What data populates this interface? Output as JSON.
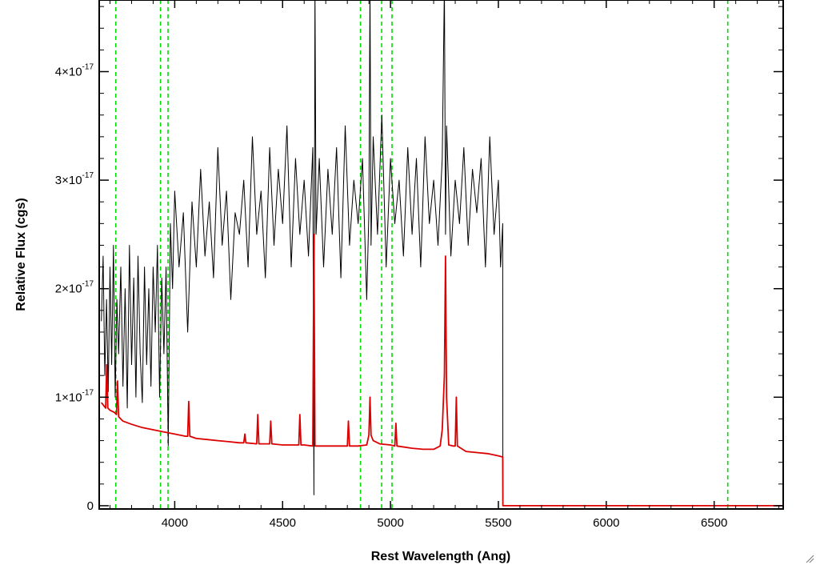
{
  "chart_data": {
    "type": "line",
    "title": "",
    "xlabel": "Rest Wavelength (Ang)",
    "ylabel": "Relative Flux (cgs)",
    "xlim": [
      3650,
      6820
    ],
    "ylim": [
      -3e-19,
      4.66e-17
    ],
    "x_ticks": [
      {
        "value": 4000,
        "label": "4000"
      },
      {
        "value": 4500,
        "label": "4500"
      },
      {
        "value": 5000,
        "label": "5000"
      },
      {
        "value": 5500,
        "label": "5500"
      },
      {
        "value": 6000,
        "label": "6000"
      },
      {
        "value": 6500,
        "label": "6500"
      }
    ],
    "y_ticks": [
      {
        "value": 0,
        "mantissa": "0",
        "exponent": ""
      },
      {
        "value": 1e-17,
        "mantissa": "1×10",
        "exponent": "-17"
      },
      {
        "value": 2e-17,
        "mantissa": "2×10",
        "exponent": "-17"
      },
      {
        "value": 3e-17,
        "mantissa": "3×10",
        "exponent": "-17"
      },
      {
        "value": 4e-17,
        "mantissa": "4×10",
        "exponent": "-17"
      }
    ],
    "vertical_markers": {
      "color": "#00dd00",
      "style": "dashed",
      "x": [
        3727,
        3934,
        3969,
        4861,
        4959,
        5007,
        6563
      ]
    },
    "series": [
      {
        "color": "#000000",
        "description_points": "observed spectrum",
        "x": [
          3660,
          3668,
          3676,
          3684,
          3692,
          3700,
          3708,
          3716,
          3724,
          3732,
          3740,
          3750,
          3760,
          3770,
          3780,
          3790,
          3800,
          3810,
          3820,
          3830,
          3840,
          3850,
          3860,
          3870,
          3880,
          3890,
          3900,
          3910,
          3920,
          3930,
          3940,
          3950,
          3960,
          3970,
          3980,
          3990,
          4000,
          4020,
          4040,
          4060,
          4080,
          4100,
          4120,
          4140,
          4160,
          4180,
          4200,
          4220,
          4240,
          4260,
          4280,
          4300,
          4320,
          4340,
          4360,
          4380,
          4400,
          4420,
          4440,
          4460,
          4480,
          4500,
          4520,
          4540,
          4560,
          4580,
          4600,
          4620,
          4640,
          4645,
          4650,
          4655,
          4670,
          4690,
          4710,
          4730,
          4750,
          4770,
          4790,
          4810,
          4830,
          4850,
          4870,
          4890,
          4900,
          4905,
          4910,
          4920,
          4940,
          4960,
          4980,
          5000,
          5020,
          5040,
          5060,
          5080,
          5100,
          5120,
          5140,
          5160,
          5180,
          5200,
          5220,
          5240,
          5250,
          5255,
          5260,
          5280,
          5300,
          5320,
          5340,
          5360,
          5380,
          5400,
          5420,
          5440,
          5460,
          5480,
          5500,
          5510,
          5520,
          5521,
          5600,
          5800,
          6000,
          6200,
          6400,
          6600,
          6820
        ],
        "values": [
          1.7e-17,
          2.3e-17,
          1.2e-17,
          1.9e-17,
          1.05e-17,
          2.2e-17,
          1.3e-17,
          2.4e-17,
          1e-17,
          1.9e-17,
          1.4e-17,
          2.2e-17,
          1.1e-17,
          2e-17,
          9e-18,
          2.4e-17,
          1.3e-17,
          2.1e-17,
          1e-17,
          2.3e-17,
          1.4e-17,
          9.5e-18,
          2.2e-17,
          1.3e-17,
          2e-17,
          1.1e-17,
          2.2e-17,
          1.6e-17,
          2.4e-17,
          1e-17,
          2.1e-17,
          1.4e-17,
          2.2e-17,
          5.5e-18,
          2.6e-17,
          2e-17,
          2.9e-17,
          2.2e-17,
          2.7e-17,
          1.6e-17,
          2.8e-17,
          2.2e-17,
          3.1e-17,
          2.3e-17,
          2.8e-17,
          2.1e-17,
          3.3e-17,
          2.4e-17,
          2.9e-17,
          1.9e-17,
          2.7e-17,
          2.5e-17,
          3e-17,
          2.2e-17,
          3.4e-17,
          2.5e-17,
          2.9e-17,
          2.1e-17,
          3.3e-17,
          2.4e-17,
          3.1e-17,
          2.6e-17,
          3.5e-17,
          2.2e-17,
          3.2e-17,
          2.5e-17,
          3e-17,
          2.3e-17,
          3.3e-17,
          1e-18,
          4.8e-17,
          2.5e-17,
          3.2e-17,
          2.2e-17,
          3.1e-17,
          2.5e-17,
          3.3e-17,
          2.1e-17,
          3.5e-17,
          2.4e-17,
          3e-17,
          2.6e-17,
          3.2e-17,
          1.9e-17,
          2.7e-17,
          4.8e-17,
          2.4e-17,
          3.4e-17,
          2.5e-17,
          3.6e-17,
          2.2e-17,
          3.2e-17,
          2.6e-17,
          3e-17,
          2.3e-17,
          3.3e-17,
          2.5e-17,
          3.2e-17,
          2.2e-17,
          3.4e-17,
          2.6e-17,
          3e-17,
          2.4e-17,
          3.2e-17,
          4.8e-17,
          2.5e-17,
          3.5e-17,
          2.3e-17,
          3e-17,
          2.6e-17,
          3.3e-17,
          2.4e-17,
          3.1e-17,
          2.7e-17,
          3.2e-17,
          2.2e-17,
          3.4e-17,
          2.5e-17,
          3e-17,
          2.2e-17,
          2.6e-17,
          0,
          0,
          0,
          0,
          0,
          0,
          0,
          0
        ]
      },
      {
        "color": "#dd0000",
        "description_points": "model spectrum",
        "x": [
          3660,
          3680,
          3685,
          3690,
          3700,
          3720,
          3730,
          3735,
          3740,
          3760,
          3800,
          3850,
          3900,
          3950,
          4000,
          4050,
          4060,
          4065,
          4070,
          4100,
          4150,
          4200,
          4250,
          4300,
          4320,
          4325,
          4330,
          4380,
          4385,
          4390,
          4440,
          4445,
          4450,
          4500,
          4575,
          4580,
          4585,
          4600,
          4640,
          4645,
          4650,
          4655,
          4700,
          4800,
          4805,
          4810,
          4850,
          4890,
          4900,
          4905,
          4910,
          4920,
          4950,
          5000,
          5020,
          5025,
          5030,
          5100,
          5150,
          5200,
          5230,
          5240,
          5250,
          5255,
          5260,
          5270,
          5290,
          5300,
          5305,
          5310,
          5350,
          5400,
          5450,
          5500,
          5518,
          5520,
          5521,
          5600,
          5800,
          6000,
          6200,
          6400,
          6600,
          6820
        ],
        "values": [
          9.5e-18,
          9e-18,
          1.3e-17,
          9e-18,
          8.8e-18,
          8.6e-18,
          8.4e-18,
          1.15e-17,
          8.2e-18,
          7.8e-18,
          7.5e-18,
          7.2e-18,
          7e-18,
          6.8e-18,
          6.6e-18,
          6.4e-18,
          6.4e-18,
          9.6e-18,
          6.4e-18,
          6.2e-18,
          6.1e-18,
          6e-18,
          5.9e-18,
          5.8e-18,
          5.8e-18,
          6.6e-18,
          5.8e-18,
          5.7e-18,
          8.4e-18,
          5.7e-18,
          5.7e-18,
          7.8e-18,
          5.7e-18,
          5.6e-18,
          5.6e-18,
          8.4e-18,
          5.6e-18,
          5.6e-18,
          5.5e-18,
          2.5e-17,
          5.5e-18,
          5.5e-18,
          5.5e-18,
          5.5e-18,
          7.8e-18,
          5.5e-18,
          5.5e-18,
          5.6e-18,
          6.5e-18,
          1e-17,
          6.5e-18,
          6e-18,
          5.7e-18,
          5.6e-18,
          5.5e-18,
          7.6e-18,
          5.5e-18,
          5.3e-18,
          5.2e-18,
          5.2e-18,
          5.5e-18,
          7e-18,
          1.2e-17,
          2.3e-17,
          1e-17,
          5.6e-18,
          5.5e-18,
          5.5e-18,
          1e-17,
          5.5e-18,
          5e-18,
          4.9e-18,
          4.8e-18,
          4.6e-18,
          4.5e-18,
          4.5e-18,
          0,
          0,
          0,
          0,
          0,
          0,
          0,
          0
        ]
      }
    ]
  }
}
